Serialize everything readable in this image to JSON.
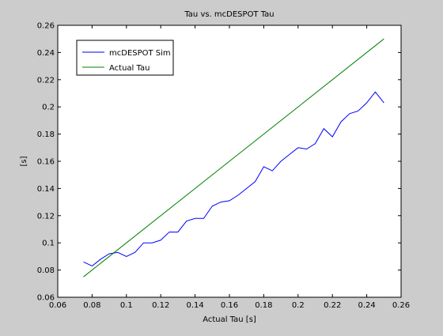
{
  "chart_data": {
    "type": "line",
    "title": "Tau vs. mcDESPOT Tau",
    "xlabel": "Actual Tau [s]",
    "ylabel": "[s]",
    "xlim": [
      0.06,
      0.26
    ],
    "ylim": [
      0.06,
      0.26
    ],
    "xticks": [
      0.06,
      0.08,
      0.1,
      0.12,
      0.14,
      0.16,
      0.18,
      0.2,
      0.22,
      0.24,
      0.26
    ],
    "yticks": [
      0.06,
      0.08,
      0.1,
      0.12,
      0.14,
      0.16,
      0.18,
      0.2,
      0.22,
      0.24,
      0.26
    ],
    "xtick_labels": [
      "0.06",
      "0.08",
      "0.1",
      "0.12",
      "0.14",
      "0.16",
      "0.18",
      "0.2",
      "0.22",
      "0.24",
      "0.26"
    ],
    "ytick_labels": [
      "0.06",
      "0.08",
      "0.1",
      "0.12",
      "0.14",
      "0.16",
      "0.18",
      "0.2",
      "0.22",
      "0.24",
      "0.26"
    ],
    "grid": false,
    "legend_position": "top-left",
    "series": [
      {
        "name": "mcDESPOT Sim",
        "color": "#0000ff",
        "x": [
          0.075,
          0.08,
          0.085,
          0.09,
          0.095,
          0.1,
          0.105,
          0.11,
          0.115,
          0.12,
          0.125,
          0.13,
          0.135,
          0.14,
          0.145,
          0.15,
          0.155,
          0.16,
          0.165,
          0.17,
          0.175,
          0.18,
          0.185,
          0.19,
          0.195,
          0.2,
          0.205,
          0.21,
          0.215,
          0.22,
          0.225,
          0.23,
          0.235,
          0.24,
          0.245,
          0.25
        ],
        "y": [
          0.086,
          0.083,
          0.088,
          0.092,
          0.093,
          0.09,
          0.093,
          0.1,
          0.1,
          0.102,
          0.108,
          0.108,
          0.116,
          0.118,
          0.118,
          0.127,
          0.13,
          0.131,
          0.135,
          0.14,
          0.145,
          0.156,
          0.153,
          0.16,
          0.165,
          0.17,
          0.169,
          0.173,
          0.184,
          0.178,
          0.189,
          0.195,
          0.197,
          0.203,
          0.211,
          0.203
        ]
      },
      {
        "name": "Actual Tau",
        "color": "#008000",
        "x": [
          0.075,
          0.25
        ],
        "y": [
          0.075,
          0.25
        ]
      }
    ]
  }
}
